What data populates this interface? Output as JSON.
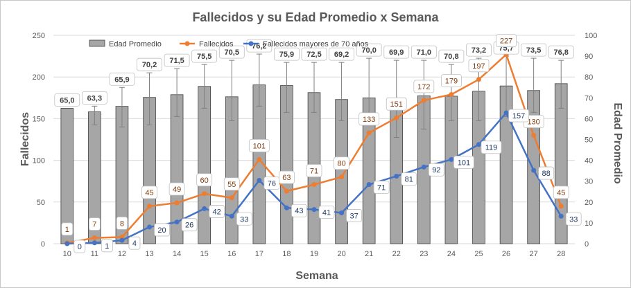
{
  "chart_data": {
    "type": "bar",
    "title": "Fallecidos y su Edad Promedio  x Semana",
    "xlabel": "Semana",
    "ylabel": "Fallecidos",
    "y2label": "Edad Promedio",
    "ylim": [
      0,
      250
    ],
    "y2lim": [
      0,
      100
    ],
    "yticks": [
      0,
      50,
      100,
      150,
      200,
      250
    ],
    "y2ticks": [
      0,
      10,
      20,
      30,
      40,
      50,
      60,
      70,
      80,
      90,
      100
    ],
    "categories": [
      "10",
      "11",
      "12",
      "13",
      "14",
      "15",
      "16",
      "17",
      "18",
      "19",
      "20",
      "21",
      "22",
      "23",
      "24",
      "25",
      "26",
      "27",
      "28"
    ],
    "legend_position": "top",
    "grid": true,
    "series": [
      {
        "name": "Edad Promedio",
        "type": "bar",
        "axis": "right",
        "color": "#a6a6a6",
        "values": [
          65.0,
          63.3,
          65.9,
          70.2,
          71.5,
          75.5,
          70.5,
          76.2,
          75.9,
          72.5,
          69.2,
          70.0,
          69.9,
          71.0,
          70.8,
          73.2,
          75.7,
          73.5,
          76.8
        ],
        "labels": [
          "65,0",
          "63,3",
          "65,9",
          "70,2",
          "71,5",
          "75,5",
          "70,5",
          "76,2",
          "75,9",
          "72,5",
          "69,2",
          "70,0",
          "69,9",
          "71,0",
          "70,8",
          "73,2",
          "75,7",
          "73,5",
          "76,8"
        ],
        "error_low": [
          null,
          57,
          56,
          57,
          61,
          65,
          59,
          66,
          63,
          63,
          59,
          58,
          51,
          55,
          59,
          59,
          61,
          63,
          65
        ],
        "error_high": [
          null,
          66,
          75,
          82,
          84,
          86,
          88,
          91,
          87,
          87,
          87,
          89,
          88,
          88,
          86,
          89,
          90,
          89,
          88
        ]
      },
      {
        "name": "Fallecidos",
        "type": "line",
        "axis": "left",
        "color": "#ed7d31",
        "values": [
          1,
          7,
          8,
          45,
          49,
          60,
          55,
          101,
          63,
          71,
          80,
          133,
          151,
          172,
          179,
          197,
          227,
          130,
          45
        ]
      },
      {
        "name": "Fallecidos mayores de 70 años",
        "type": "line",
        "axis": "left",
        "color": "#4472c4",
        "values": [
          0,
          1,
          4,
          20,
          26,
          42,
          33,
          76,
          43,
          41,
          37,
          71,
          81,
          92,
          101,
          119,
          157,
          88,
          33
        ]
      }
    ]
  }
}
